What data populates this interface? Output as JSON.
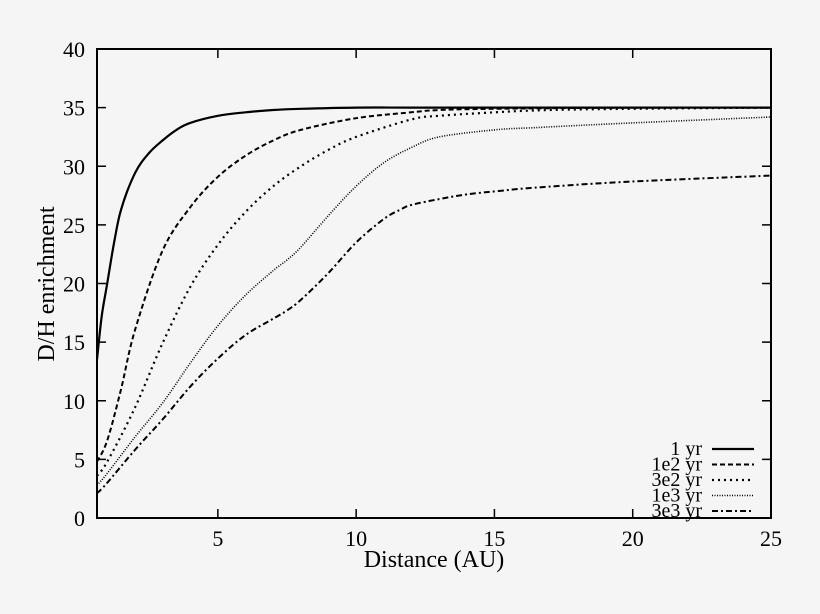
{
  "chart_data": {
    "type": "line",
    "title": "",
    "xlabel": "Distance (AU)",
    "ylabel": "D/H enrichment",
    "xlim": [
      0.63,
      25
    ],
    "ylim": [
      0,
      40
    ],
    "xticks": [
      5,
      10,
      15,
      20,
      25
    ],
    "yticks": [
      0,
      5,
      10,
      15,
      20,
      25,
      30,
      35,
      40
    ],
    "grid": false,
    "legend_position": "lower right",
    "series": [
      {
        "name": "1 yr",
        "style": "solid",
        "x": [
          0.63,
          0.8,
          1,
          1.25,
          1.5,
          2,
          2.5,
          3,
          3.5,
          4,
          5,
          6,
          7,
          8,
          10,
          12,
          15,
          20,
          25
        ],
        "y": [
          13.5,
          17.2,
          20.0,
          23.5,
          26.3,
          29.4,
          31.1,
          32.2,
          33.1,
          33.7,
          34.3,
          34.6,
          34.8,
          34.9,
          35.0,
          35.0,
          35.0,
          35.0,
          35.0
        ]
      },
      {
        "name": "1e2 yr",
        "style": "dashed",
        "x": [
          0.63,
          1,
          1.5,
          2,
          3,
          4,
          5,
          6,
          7,
          8,
          10,
          12,
          13,
          15,
          20,
          25
        ],
        "y": [
          4.8,
          6.6,
          11.0,
          16.0,
          22.8,
          26.5,
          29.1,
          30.9,
          32.2,
          33.1,
          34.1,
          34.6,
          34.8,
          34.9,
          35.0,
          35.0
        ]
      },
      {
        "name": "3e2 yr",
        "style": "dotted",
        "x": [
          0.63,
          1,
          2,
          3,
          4,
          5,
          6,
          7,
          8,
          9,
          10,
          12,
          13,
          15,
          17,
          20,
          25
        ],
        "y": [
          3.6,
          4.8,
          9.4,
          14.9,
          19.7,
          23.3,
          26.1,
          28.3,
          30.0,
          31.4,
          32.5,
          34.0,
          34.3,
          34.6,
          34.8,
          34.9,
          35.0
        ]
      },
      {
        "name": "1e3 yr",
        "style": "fine-dotted",
        "x": [
          0.63,
          1,
          2,
          3,
          4,
          5,
          6,
          7,
          7.5,
          8,
          9,
          10,
          11,
          12,
          13,
          15,
          16.5,
          20,
          25
        ],
        "y": [
          2.8,
          3.8,
          6.9,
          9.8,
          13.2,
          16.4,
          19.0,
          21.1,
          22.0,
          23.1,
          25.8,
          28.3,
          30.3,
          31.6,
          32.5,
          33.1,
          33.3,
          33.7,
          34.2
        ]
      },
      {
        "name": "3e3 yr",
        "style": "dash-dot",
        "x": [
          0.63,
          1,
          2,
          3,
          4,
          5,
          6,
          7,
          7.5,
          8,
          9,
          10,
          11,
          11.6,
          12,
          13,
          14,
          15.2,
          16.6,
          20,
          25
        ],
        "y": [
          2.1,
          3.0,
          5.8,
          8.4,
          11.2,
          13.6,
          15.6,
          17.0,
          17.7,
          18.6,
          20.9,
          23.5,
          25.5,
          26.3,
          26.7,
          27.2,
          27.6,
          27.9,
          28.2,
          28.7,
          29.2
        ]
      }
    ]
  },
  "axes": {
    "xlabel": "Distance (AU)",
    "ylabel": "D/H enrichment"
  },
  "legend": {
    "items": [
      "1 yr",
      "1e2 yr",
      "3e2 yr",
      "1e3 yr",
      "3e3 yr"
    ]
  }
}
